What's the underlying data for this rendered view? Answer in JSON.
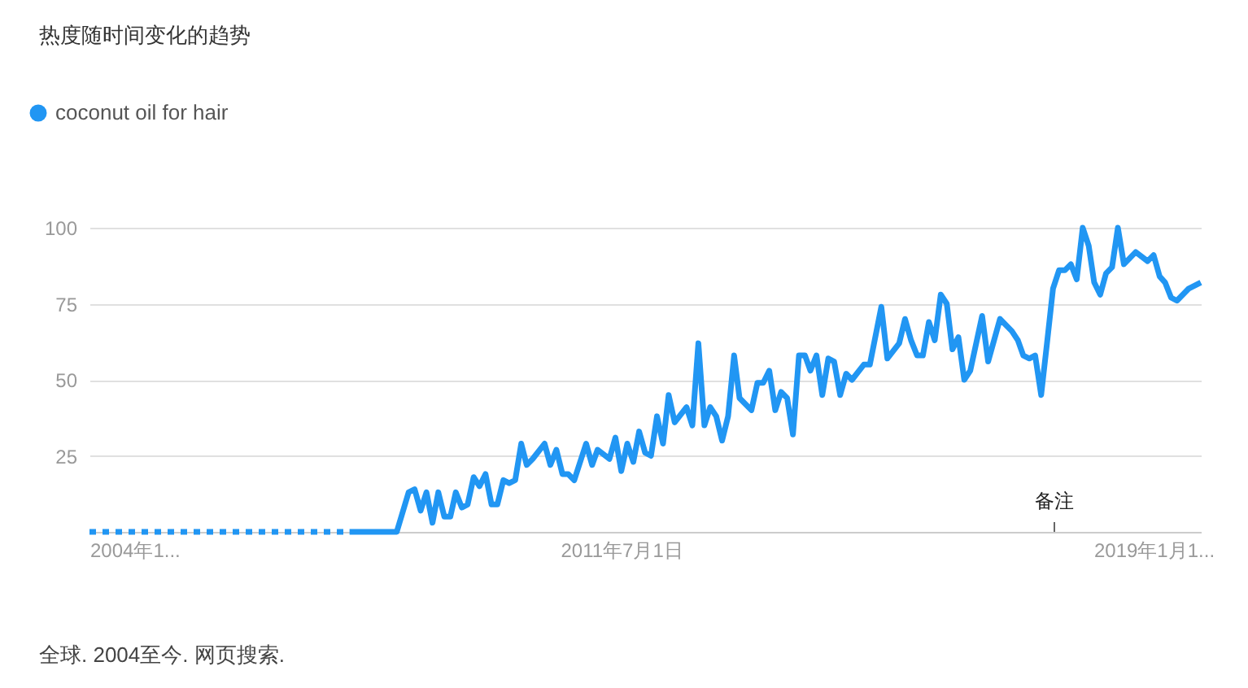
{
  "chart_data": {
    "type": "line",
    "title": "热度随时间变化的趋势",
    "xlim": [
      "2004-01",
      "2019-09"
    ],
    "ylim": [
      0,
      100
    ],
    "yticks": [
      25,
      50,
      75,
      100
    ],
    "xticks": [
      {
        "value": "2004-01",
        "label": "2004年1..."
      },
      {
        "value": "2011-07",
        "label": "2011年7月1日"
      },
      {
        "value": "2019-01",
        "label": "2019年1月1..."
      }
    ],
    "grid": "y",
    "legend": "top left",
    "series": [
      {
        "color": "#2196f3",
        "line_style": "dotted",
        "x": [
          "2004-01",
          "2007-09"
        ],
        "values": [
          0,
          0
        ]
      },
      {
        "name": "coconut oil for hair",
        "color": "#2196f3",
        "line_style": "solid",
        "x": [
          "2007-09",
          "2008-05",
          "2008-07",
          "2008-08",
          "2008-09",
          "2008-10",
          "2008-11",
          "2008-12",
          "2009-01",
          "2009-02",
          "2009-03",
          "2009-04",
          "2009-05",
          "2009-06",
          "2009-07",
          "2009-08",
          "2009-09",
          "2009-10",
          "2009-11",
          "2009-12",
          "2010-01",
          "2010-02",
          "2010-03",
          "2010-04",
          "2010-06",
          "2010-07",
          "2010-08",
          "2010-09",
          "2010-10",
          "2010-11",
          "2011-01",
          "2011-02",
          "2011-03",
          "2011-05",
          "2011-06",
          "2011-07",
          "2011-08",
          "2011-09",
          "2011-10",
          "2011-11",
          "2011-12",
          "2012-01",
          "2012-02",
          "2012-03",
          "2012-04",
          "2012-06",
          "2012-07",
          "2012-08",
          "2012-09",
          "2012-10",
          "2012-11",
          "2012-12",
          "2013-01",
          "2013-02",
          "2013-03",
          "2013-05",
          "2013-06",
          "2013-07",
          "2013-08",
          "2013-09",
          "2013-10",
          "2013-11",
          "2013-12",
          "2014-01",
          "2014-02",
          "2014-03",
          "2014-04",
          "2014-05",
          "2014-06",
          "2014-07",
          "2014-08",
          "2014-09",
          "2014-10",
          "2014-12",
          "2015-01",
          "2015-03",
          "2015-04",
          "2015-06",
          "2015-07",
          "2015-08",
          "2015-09",
          "2015-10",
          "2015-11",
          "2015-12",
          "2016-01",
          "2016-02",
          "2016-03",
          "2016-04",
          "2016-05",
          "2016-06",
          "2016-08",
          "2016-09",
          "2016-11",
          "2017-01",
          "2017-02",
          "2017-03",
          "2017-04",
          "2017-05",
          "2017-06",
          "2017-07",
          "2017-08",
          "2017-09",
          "2017-10",
          "2017-11",
          "2017-12",
          "2018-01",
          "2018-02",
          "2018-03",
          "2018-04",
          "2018-05",
          "2018-06",
          "2018-07",
          "2018-08",
          "2018-10",
          "2018-12",
          "2019-01",
          "2019-02",
          "2019-03",
          "2019-04",
          "2019-05",
          "2019-07",
          "2019-08",
          "2019-09"
        ],
        "values": [
          0,
          0,
          13,
          14,
          7,
          13,
          3,
          13,
          5,
          5,
          13,
          8,
          9,
          18,
          15,
          19,
          9,
          9,
          17,
          16,
          17,
          29,
          22,
          24,
          29,
          22,
          27,
          19,
          19,
          17,
          29,
          22,
          27,
          24,
          31,
          20,
          29,
          23,
          33,
          26,
          25,
          38,
          29,
          45,
          36,
          41,
          35,
          62,
          35,
          41,
          38,
          30,
          38,
          58,
          44,
          40,
          49,
          49,
          53,
          40,
          46,
          44,
          32,
          58,
          58,
          53,
          58,
          45,
          57,
          56,
          45,
          52,
          50,
          55,
          55,
          74,
          57,
          62,
          70,
          63,
          58,
          58,
          69,
          63,
          78,
          75,
          60,
          64,
          50,
          53,
          71,
          56,
          70,
          66,
          63,
          58,
          57,
          58,
          45,
          62,
          80,
          86,
          86,
          88,
          83,
          100,
          94,
          82,
          78,
          85,
          87,
          100,
          88,
          92,
          89,
          91,
          84,
          82,
          77,
          76,
          80,
          81,
          82
        ]
      }
    ],
    "annotations": [
      "备注",
      "全球. 2004至今. 网页搜索."
    ]
  }
}
